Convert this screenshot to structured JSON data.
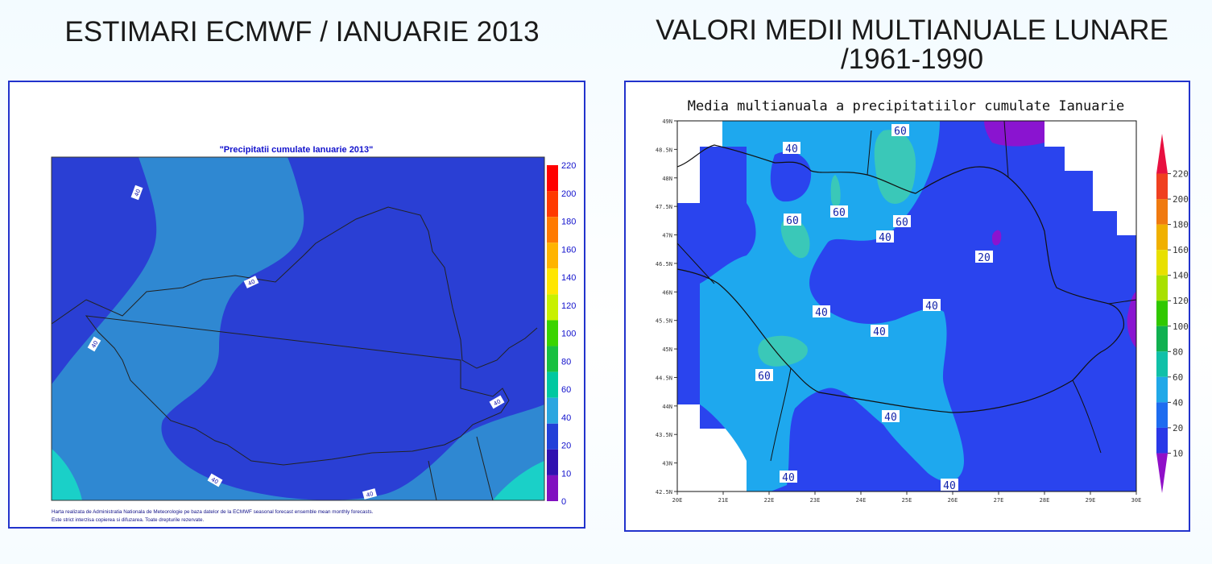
{
  "titles": {
    "left": "ESTIMARI ECMWF / IANUARIE 2013",
    "right_line1": "VALORI MEDII MULTIANUALE LUNARE",
    "right_line2": "/1961-1990"
  },
  "left_map": {
    "title": "\"Precipitatii cumulate Ianuarie 2013\"",
    "contour_labels": [
      "40",
      "40",
      "40",
      "40",
      "40",
      "40"
    ],
    "legend_ticks": [
      "220",
      "200",
      "180",
      "160",
      "140",
      "120",
      "100",
      "80",
      "60",
      "40",
      "20",
      "10",
      "0"
    ],
    "legend_colors": [
      "#ff0000",
      "#ff3a00",
      "#ff7a00",
      "#ffb400",
      "#ffe600",
      "#c8f000",
      "#3ad400",
      "#18c040",
      "#00c8a0",
      "#2aa6e0",
      "#2240d8",
      "#3010b0",
      "#8010c0"
    ],
    "footnote_line1": "Harta realizata de Administratia Nationala de Meteorologie pe baza datelor de la ECMWF seasonal forecast ensemble mean monthly forecasts.",
    "footnote_line2": "Este strict interzisa copierea si difuzarea. Toate drepturile rezervate.",
    "colors": {
      "low": "#2a3fd4",
      "mid": "#2f88d2",
      "high": "#1ad0c8"
    }
  },
  "right_map": {
    "title": "Media multianuala a precipitatiilor cumulate Ianuarie",
    "y_ticks": [
      "49N",
      "48.5N",
      "48N",
      "47.5N",
      "47N",
      "46.5N",
      "46N",
      "45.5N",
      "45N",
      "44.5N",
      "44N",
      "43.5N",
      "43N",
      "42.5N"
    ],
    "x_ticks": [
      "20E",
      "21E",
      "22E",
      "23E",
      "24E",
      "25E",
      "26E",
      "27E",
      "28E",
      "29E",
      "30E"
    ],
    "contour_labels": [
      {
        "text": "40"
      },
      {
        "text": "60"
      },
      {
        "text": "60"
      },
      {
        "text": "60"
      },
      {
        "text": "60"
      },
      {
        "text": "40"
      },
      {
        "text": "20"
      },
      {
        "text": "40"
      },
      {
        "text": "40"
      },
      {
        "text": "40"
      },
      {
        "text": "60"
      },
      {
        "text": "40"
      },
      {
        "text": "40"
      },
      {
        "text": "40"
      }
    ],
    "legend_ticks": [
      "220",
      "200",
      "180",
      "160",
      "140",
      "120",
      "100",
      "80",
      "60",
      "40",
      "20",
      "10"
    ],
    "legend_colors": [
      "#e81040",
      "#f04020",
      "#f07a10",
      "#f0b000",
      "#e8e000",
      "#a8e000",
      "#30c800",
      "#10b050",
      "#10c0a8",
      "#20a8e8",
      "#1e6cf0",
      "#2a38e8",
      "#9010c8"
    ],
    "colors": {
      "low": "#2a44ee",
      "mid": "#1ea8ee",
      "high": "#3ac8b8",
      "lowest": "#8a14d0"
    }
  }
}
